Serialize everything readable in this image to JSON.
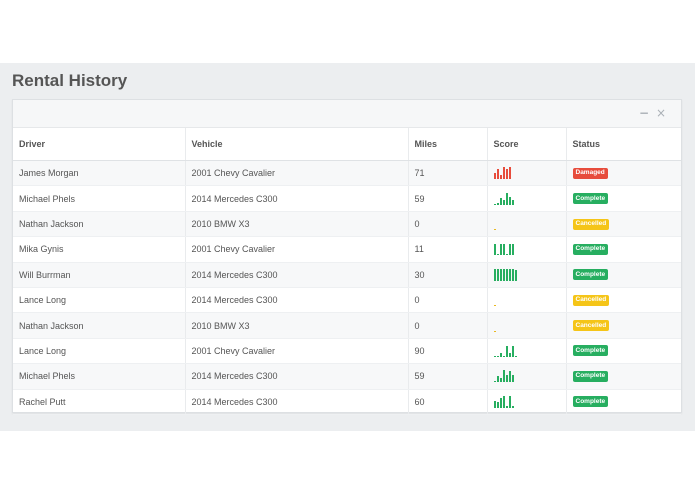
{
  "page": {
    "title": "Rental History"
  },
  "panel": {
    "minimize_icon": "minus-icon",
    "close_icon": "close-icon",
    "minimize_glyph": "−",
    "close_glyph": "×"
  },
  "colors": {
    "damaged": "#e74c3c",
    "complete": "#27ae60",
    "cancelled": "#f5c518",
    "spark_red": "#e74c3c",
    "spark_green": "#27ae60",
    "spark_yellow": "#e9b820"
  },
  "table": {
    "columns": [
      "Driver",
      "Vehicle",
      "Miles",
      "Score",
      "Status"
    ],
    "rows": [
      {
        "driver": "James Morgan",
        "vehicle": "2001 Chevy Cavalier",
        "miles": "71",
        "status": "Damaged",
        "score_bars": [
          0.5,
          0.8,
          0.3,
          1.0,
          0.8,
          1.0
        ]
      },
      {
        "driver": "Michael Phels",
        "vehicle": "2014 Mercedes C300",
        "miles": "59",
        "status": "Complete",
        "score_bars": [
          0.1,
          0.2,
          0.6,
          0.4,
          1.0,
          0.7,
          0.4
        ]
      },
      {
        "driver": "Nathan Jackson",
        "vehicle": "2010 BMW X3",
        "miles": "0",
        "status": "Cancelled",
        "score_bars": [
          0.1
        ]
      },
      {
        "driver": "Mika Gynis",
        "vehicle": "2001 Chevy Cavalier",
        "miles": "11",
        "status": "Complete",
        "score_bars": [
          0.9,
          0.1,
          0.9,
          0.9,
          0.1,
          0.9,
          0.9
        ]
      },
      {
        "driver": "Will Burrman",
        "vehicle": "2014 Mercedes C300",
        "miles": "30",
        "status": "Complete",
        "score_bars": [
          1.0,
          1.0,
          1.0,
          1.0,
          1.0,
          1.0,
          1.0,
          0.9
        ]
      },
      {
        "driver": "Lance Long",
        "vehicle": "2014 Mercedes C300",
        "miles": "0",
        "status": "Cancelled",
        "score_bars": [
          0.1
        ]
      },
      {
        "driver": "Nathan Jackson",
        "vehicle": "2010 BMW X3",
        "miles": "0",
        "status": "Cancelled",
        "score_bars": [
          0.1
        ]
      },
      {
        "driver": "Lance Long",
        "vehicle": "2001 Chevy Cavalier",
        "miles": "90",
        "status": "Complete",
        "score_bars": [
          0.1,
          0.1,
          0.3,
          0.1,
          0.9,
          0.3,
          0.9,
          0.1
        ]
      },
      {
        "driver": "Michael Phels",
        "vehicle": "2014 Mercedes C300",
        "miles": "59",
        "status": "Complete",
        "score_bars": [
          0.1,
          0.5,
          0.3,
          1.0,
          0.6,
          0.9,
          0.6
        ]
      },
      {
        "driver": "Rachel Putt",
        "vehicle": "2014 Mercedes C300",
        "miles": "60",
        "status": "Complete",
        "score_bars": [
          0.6,
          0.5,
          0.8,
          1.0,
          0.2,
          1.0,
          0.2
        ]
      }
    ]
  }
}
